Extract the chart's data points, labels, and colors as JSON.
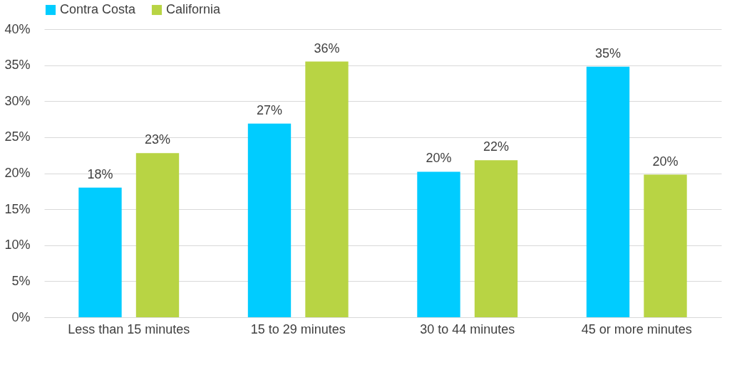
{
  "chart_data": {
    "type": "bar",
    "categories": [
      "Less than 15 minutes",
      "15 to 29 minutes",
      "30 to 44 minutes",
      "45 or more minutes"
    ],
    "series": [
      {
        "name": "Contra Costa",
        "color": "#00ccff",
        "values": [
          18.0,
          26.9,
          20.2,
          34.8
        ],
        "value_labels": [
          "18%",
          "27%",
          "20%",
          "35%"
        ]
      },
      {
        "name": "California",
        "color": "#b8d444",
        "values": [
          22.8,
          35.5,
          21.8,
          19.8
        ],
        "value_labels": [
          "23%",
          "36%",
          "22%",
          "20%"
        ]
      }
    ],
    "ylim": [
      0,
      40
    ],
    "yticks": [
      {
        "value": 0,
        "label": "0%"
      },
      {
        "value": 5,
        "label": "5%"
      },
      {
        "value": 10,
        "label": "10%"
      },
      {
        "value": 15,
        "label": "15%"
      },
      {
        "value": 20,
        "label": "20%"
      },
      {
        "value": 25,
        "label": "25%"
      },
      {
        "value": 30,
        "label": "30%"
      },
      {
        "value": 35,
        "label": "35%"
      },
      {
        "value": 40,
        "label": "40%"
      }
    ],
    "grid": "y",
    "legend": "top"
  }
}
